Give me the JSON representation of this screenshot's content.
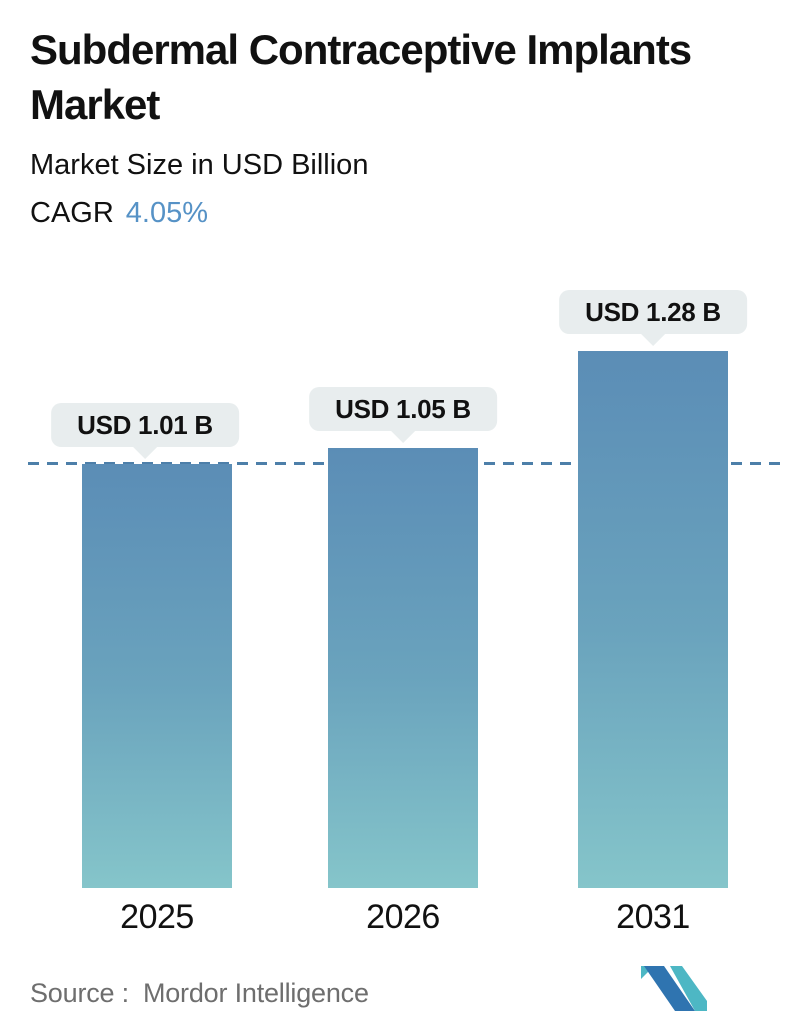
{
  "header": {
    "title": "Subdermal Contraceptive Implants Market",
    "subtitle": "Market Size in USD Billion",
    "cagr_label": "CAGR",
    "cagr_value": "4.05%"
  },
  "chart_data": {
    "type": "bar",
    "categories": [
      "2025",
      "2026",
      "2031"
    ],
    "values": [
      1.01,
      1.05,
      1.28
    ],
    "bar_labels": [
      "USD 1.01 B",
      "USD 1.05 B",
      "USD 1.28 B"
    ],
    "title": "Subdermal Contraceptive Implants Market",
    "subtitle": "Market Size in USD Billion",
    "cagr": "4.05%",
    "xlabel": "",
    "ylabel": "",
    "baseline_value": 1.01,
    "baseline_style": "dashed",
    "grid": false,
    "legend": false
  },
  "footer": {
    "source_label": "Source :",
    "source_value": "Mordor Intelligence",
    "logo_name": "mordor-intelligence-logo"
  },
  "colors": {
    "page_bg": "#ffffff",
    "title_text": "#111111",
    "accent_blue": "#5692c6",
    "bar_top": "#5b8db6",
    "bar_mid": "#6aa3bd",
    "bar_bottom": "#85c5ca",
    "dashed_line": "#4d7fa9",
    "callout_bg": "#e8edee",
    "source_text": "#6e6e6e",
    "logo_blue": "#2f74b0",
    "logo_teal": "#4db7c4"
  }
}
